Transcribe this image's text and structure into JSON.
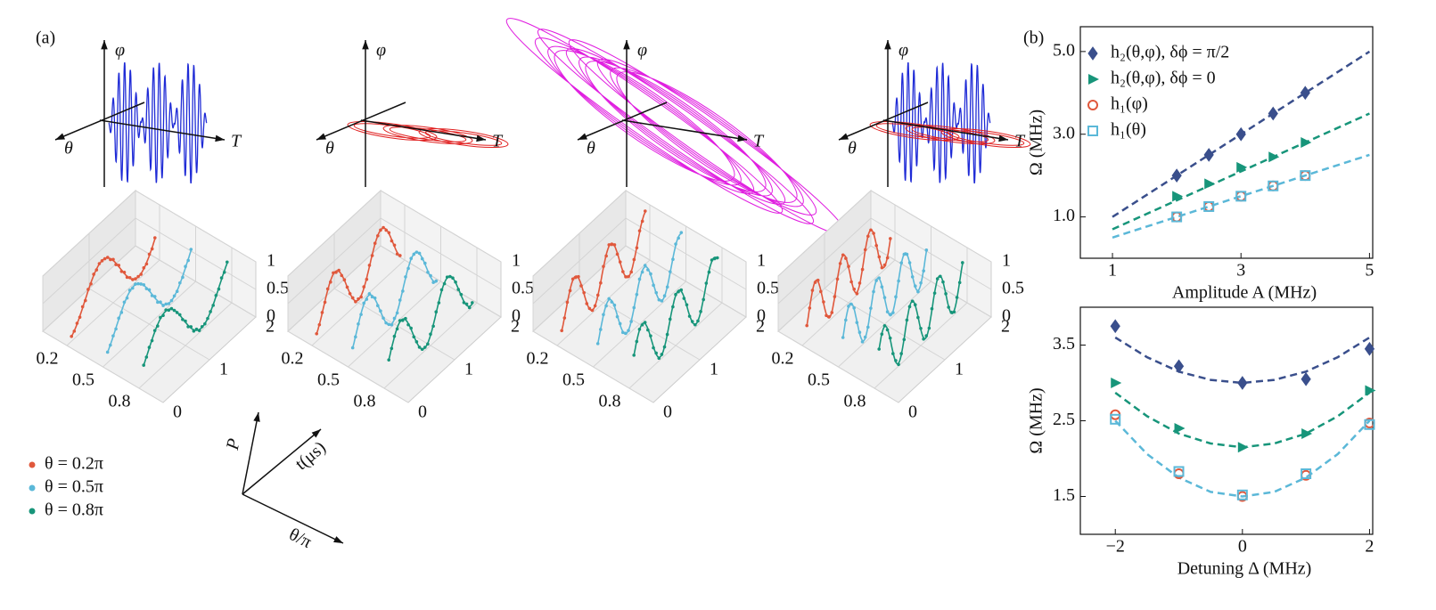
{
  "label_a": "(a)",
  "label_b": "(b)",
  "panel_a": {
    "top_axes": {
      "phi": "φ",
      "theta": "θ",
      "T": "T"
    },
    "plots_3d": {
      "theta_ticks": [
        0.2,
        0.5,
        0.8
      ],
      "t_ticks": [
        0,
        1,
        2
      ],
      "p_ticks": [
        0,
        0.5,
        1
      ]
    },
    "legend": [
      "θ = 0.2π",
      "θ = 0.5π",
      "θ = 0.8π"
    ],
    "legend_colors": [
      "#e0583c",
      "#5bb8d8",
      "#17957a"
    ],
    "axis_key": {
      "P": "P",
      "t": "t(μs)",
      "theta": "θ/π"
    }
  },
  "chart_data": [
    {
      "type": "scatter",
      "xlabel": "Amplitude A (MHz)",
      "ylabel": "Ω (MHz)",
      "xlim": [
        0.5,
        5.05
      ],
      "ylim": [
        0,
        5.6
      ],
      "xticks": [
        1,
        3,
        5
      ],
      "yticks": [
        {
          "value": 1,
          "label": "1.0"
        },
        {
          "value": 3,
          "label": "3.0"
        },
        {
          "value": 5,
          "label": "5.0"
        }
      ],
      "legend": "upper left",
      "x": [
        2,
        2.5,
        3,
        3.5,
        4
      ],
      "series": [
        {
          "name": "h₂(θ,φ),  δϕ = π/2",
          "color": "#3a4f8c",
          "marker": "diamond",
          "values": [
            2.0,
            2.5,
            3.0,
            3.5,
            4.0
          ]
        },
        {
          "name": "h₂(θ,φ),  δϕ = 0",
          "color": "#17957a",
          "marker": "triangle",
          "values": [
            1.5,
            1.8,
            2.2,
            2.45,
            2.8
          ]
        },
        {
          "name": "h₁(φ)",
          "color": "#e0583c",
          "marker": "circle",
          "values": [
            1.0,
            1.25,
            1.5,
            1.75,
            2.0
          ]
        },
        {
          "name": "h₁(θ)",
          "color": "#5bb8d8",
          "marker": "square",
          "values": [
            1.0,
            1.25,
            1.5,
            1.75,
            2.0
          ]
        }
      ],
      "fits": [
        {
          "color": "#3a4f8c",
          "x": [
            1,
            5
          ],
          "values": [
            1.0,
            5.0
          ]
        },
        {
          "color": "#17957a",
          "x": [
            1,
            5
          ],
          "values": [
            0.7,
            3.5
          ]
        },
        {
          "color": "#5bb8d8",
          "x": [
            1,
            5
          ],
          "values": [
            0.5,
            2.5
          ]
        }
      ]
    },
    {
      "type": "scatter",
      "xlabel": "Detuning Δ (MHz)",
      "ylabel": "Ω (MHz)",
      "xlim": [
        -2.55,
        2.05
      ],
      "ylim": [
        1.0,
        4.0
      ],
      "xticks": [
        {
          "value": -2,
          "label": "−2"
        },
        0,
        2
      ],
      "yticks": [
        1.5,
        2.5,
        3.5
      ],
      "x": [
        -2,
        -1,
        0,
        1,
        2
      ],
      "series": [
        {
          "color": "#3a4f8c",
          "marker": "diamond",
          "values": [
            3.75,
            3.22,
            3.0,
            3.05,
            3.45
          ]
        },
        {
          "color": "#17957a",
          "marker": "triangle",
          "values": [
            3.0,
            2.4,
            2.15,
            2.33,
            2.9
          ]
        },
        {
          "color": "#e0583c",
          "marker": "circle",
          "values": [
            2.58,
            1.8,
            1.5,
            1.78,
            2.47
          ]
        },
        {
          "color": "#5bb8d8",
          "marker": "square",
          "values": [
            2.52,
            1.83,
            1.52,
            1.8,
            2.45
          ]
        }
      ],
      "fits": [
        {
          "color": "#3a4f8c",
          "x": [
            -2,
            -1.5,
            -1,
            -0.5,
            0,
            0.5,
            1,
            1.5,
            2
          ],
          "values": [
            3.6,
            3.34,
            3.15,
            3.04,
            3.0,
            3.04,
            3.15,
            3.34,
            3.6
          ]
        },
        {
          "color": "#17957a",
          "x": [
            -2,
            -1.5,
            -1,
            -0.5,
            0,
            0.5,
            1,
            1.5,
            2
          ],
          "values": [
            2.87,
            2.56,
            2.33,
            2.2,
            2.15,
            2.2,
            2.33,
            2.56,
            2.87
          ]
        },
        {
          "color": "#5bb8d8",
          "x": [
            -2,
            -1.5,
            -1,
            -0.5,
            0,
            0.5,
            1,
            1.5,
            2
          ],
          "values": [
            2.5,
            2.06,
            1.75,
            1.56,
            1.5,
            1.56,
            1.75,
            2.06,
            2.5
          ]
        }
      ]
    }
  ]
}
